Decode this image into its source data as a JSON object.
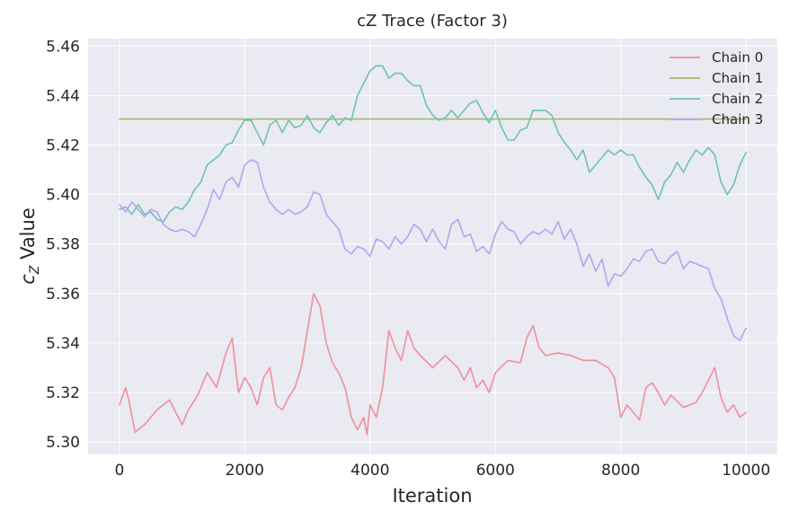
{
  "chart_data": {
    "type": "line",
    "title": "cZ Trace (Factor 3)",
    "xlabel": "Iteration",
    "ylabel": "c",
    "ylabel_subscript": "Z",
    "ylabel_suffix": " Value",
    "xlim": [
      -500,
      10500
    ],
    "ylim": [
      5.295,
      5.463
    ],
    "xticks": [
      0,
      2000,
      4000,
      6000,
      8000,
      10000
    ],
    "xtick_labels": [
      "0",
      "2000",
      "4000",
      "6000",
      "8000",
      "10000"
    ],
    "yticks": [
      5.3,
      5.32,
      5.34,
      5.36,
      5.38,
      5.4,
      5.42,
      5.44,
      5.46
    ],
    "ytick_labels": [
      "5.30",
      "5.32",
      "5.34",
      "5.36",
      "5.38",
      "5.40",
      "5.42",
      "5.44",
      "5.46"
    ],
    "grid": true,
    "legend_position": "top-right",
    "background": "#eaeaf2",
    "series": [
      {
        "name": "Chain 0",
        "color": "#f08f9c",
        "x": [
          0,
          100,
          150,
          250,
          400,
          600,
          800,
          1000,
          1100,
          1250,
          1400,
          1550,
          1700,
          1800,
          1900,
          2000,
          2100,
          2200,
          2300,
          2400,
          2500,
          2600,
          2700,
          2800,
          2900,
          3000,
          3100,
          3200,
          3300,
          3400,
          3500,
          3600,
          3700,
          3800,
          3900,
          3950,
          4000,
          4100,
          4200,
          4300,
          4400,
          4500,
          4600,
          4700,
          4800,
          5000,
          5200,
          5400,
          5500,
          5600,
          5700,
          5800,
          5900,
          6000,
          6200,
          6400,
          6500,
          6600,
          6700,
          6800,
          7000,
          7200,
          7400,
          7600,
          7800,
          7900,
          8000,
          8100,
          8200,
          8300,
          8400,
          8500,
          8600,
          8700,
          8800,
          9000,
          9200,
          9300,
          9400,
          9500,
          9600,
          9700,
          9800,
          9900,
          10000
        ],
        "y": [
          5.315,
          5.322,
          5.317,
          5.304,
          5.307,
          5.313,
          5.317,
          5.307,
          5.313,
          5.319,
          5.328,
          5.322,
          5.336,
          5.342,
          5.32,
          5.326,
          5.322,
          5.315,
          5.326,
          5.33,
          5.315,
          5.313,
          5.318,
          5.322,
          5.33,
          5.345,
          5.36,
          5.355,
          5.34,
          5.332,
          5.328,
          5.322,
          5.31,
          5.305,
          5.31,
          5.303,
          5.315,
          5.31,
          5.322,
          5.345,
          5.338,
          5.333,
          5.345,
          5.338,
          5.335,
          5.33,
          5.335,
          5.33,
          5.325,
          5.33,
          5.322,
          5.325,
          5.32,
          5.328,
          5.333,
          5.332,
          5.342,
          5.347,
          5.338,
          5.335,
          5.336,
          5.335,
          5.333,
          5.333,
          5.33,
          5.326,
          5.31,
          5.315,
          5.312,
          5.309,
          5.322,
          5.324,
          5.32,
          5.315,
          5.319,
          5.314,
          5.316,
          5.32,
          5.325,
          5.33,
          5.318,
          5.312,
          5.315,
          5.31,
          5.312
        ]
      },
      {
        "name": "Chain 1",
        "color": "#a3b86a",
        "x": [
          0,
          10000
        ],
        "y": [
          5.4305,
          5.4305
        ]
      },
      {
        "name": "Chain 2",
        "color": "#6cc2b5",
        "x": [
          0,
          100,
          200,
          300,
          400,
          500,
          600,
          700,
          800,
          900,
          1000,
          1100,
          1200,
          1300,
          1400,
          1500,
          1600,
          1700,
          1800,
          1900,
          2000,
          2100,
          2200,
          2300,
          2400,
          2500,
          2600,
          2700,
          2800,
          2900,
          3000,
          3100,
          3200,
          3300,
          3400,
          3500,
          3600,
          3700,
          3800,
          3900,
          4000,
          4100,
          4200,
          4300,
          4400,
          4500,
          4600,
          4700,
          4800,
          4900,
          5000,
          5100,
          5200,
          5300,
          5400,
          5500,
          5600,
          5700,
          5800,
          5900,
          6000,
          6100,
          6200,
          6300,
          6400,
          6500,
          6600,
          6700,
          6800,
          6900,
          7000,
          7100,
          7200,
          7300,
          7400,
          7500,
          7600,
          7700,
          7800,
          7900,
          8000,
          8100,
          8200,
          8300,
          8400,
          8500,
          8600,
          8700,
          8800,
          8900,
          9000,
          9100,
          9200,
          9300,
          9400,
          9500,
          9600,
          9700,
          9800,
          9900,
          10000
        ],
        "y": [
          5.394,
          5.395,
          5.392,
          5.396,
          5.392,
          5.393,
          5.39,
          5.389,
          5.393,
          5.395,
          5.394,
          5.397,
          5.402,
          5.405,
          5.412,
          5.414,
          5.416,
          5.42,
          5.421,
          5.426,
          5.43,
          5.43,
          5.425,
          5.42,
          5.428,
          5.43,
          5.425,
          5.43,
          5.427,
          5.428,
          5.432,
          5.427,
          5.425,
          5.429,
          5.432,
          5.428,
          5.431,
          5.43,
          5.44,
          5.445,
          5.45,
          5.452,
          5.452,
          5.447,
          5.449,
          5.449,
          5.446,
          5.444,
          5.444,
          5.436,
          5.432,
          5.43,
          5.431,
          5.434,
          5.431,
          5.434,
          5.437,
          5.438,
          5.433,
          5.429,
          5.434,
          5.427,
          5.422,
          5.422,
          5.426,
          5.427,
          5.434,
          5.434,
          5.434,
          5.432,
          5.425,
          5.421,
          5.418,
          5.414,
          5.418,
          5.409,
          5.412,
          5.415,
          5.418,
          5.416,
          5.418,
          5.416,
          5.416,
          5.411,
          5.407,
          5.404,
          5.398,
          5.405,
          5.408,
          5.413,
          5.409,
          5.414,
          5.418,
          5.416,
          5.419,
          5.416,
          5.405,
          5.4,
          5.404,
          5.412,
          5.417
        ]
      },
      {
        "name": "Chain 3",
        "color": "#b7a3ef",
        "x": [
          0,
          100,
          200,
          300,
          400,
          500,
          600,
          700,
          800,
          900,
          1000,
          1100,
          1200,
          1300,
          1400,
          1500,
          1600,
          1700,
          1800,
          1900,
          2000,
          2100,
          2200,
          2300,
          2400,
          2500,
          2600,
          2700,
          2800,
          2900,
          3000,
          3100,
          3200,
          3300,
          3400,
          3500,
          3600,
          3700,
          3800,
          3900,
          4000,
          4100,
          4200,
          4300,
          4400,
          4500,
          4600,
          4700,
          4800,
          4900,
          5000,
          5100,
          5200,
          5300,
          5400,
          5500,
          5600,
          5700,
          5800,
          5900,
          6000,
          6100,
          6200,
          6300,
          6400,
          6500,
          6600,
          6700,
          6800,
          6900,
          7000,
          7100,
          7200,
          7300,
          7400,
          7500,
          7600,
          7700,
          7800,
          7900,
          8000,
          8100,
          8200,
          8300,
          8400,
          8500,
          8600,
          8700,
          8800,
          8900,
          9000,
          9100,
          9200,
          9300,
          9400,
          9500,
          9600,
          9700,
          9800,
          9900,
          10000
        ],
        "y": [
          5.396,
          5.393,
          5.397,
          5.394,
          5.391,
          5.394,
          5.393,
          5.388,
          5.386,
          5.385,
          5.386,
          5.385,
          5.383,
          5.388,
          5.394,
          5.402,
          5.398,
          5.405,
          5.407,
          5.403,
          5.412,
          5.414,
          5.413,
          5.403,
          5.397,
          5.394,
          5.392,
          5.394,
          5.392,
          5.393,
          5.395,
          5.401,
          5.4,
          5.392,
          5.389,
          5.386,
          5.378,
          5.376,
          5.379,
          5.378,
          5.375,
          5.382,
          5.381,
          5.378,
          5.383,
          5.38,
          5.383,
          5.388,
          5.386,
          5.381,
          5.386,
          5.381,
          5.378,
          5.388,
          5.39,
          5.383,
          5.384,
          5.377,
          5.379,
          5.376,
          5.384,
          5.389,
          5.386,
          5.385,
          5.38,
          5.383,
          5.385,
          5.384,
          5.386,
          5.384,
          5.389,
          5.382,
          5.386,
          5.38,
          5.371,
          5.376,
          5.369,
          5.374,
          5.363,
          5.368,
          5.367,
          5.37,
          5.374,
          5.373,
          5.377,
          5.378,
          5.373,
          5.372,
          5.375,
          5.377,
          5.37,
          5.373,
          5.372,
          5.371,
          5.37,
          5.362,
          5.358,
          5.35,
          5.343,
          5.341,
          5.346
        ]
      }
    ]
  }
}
